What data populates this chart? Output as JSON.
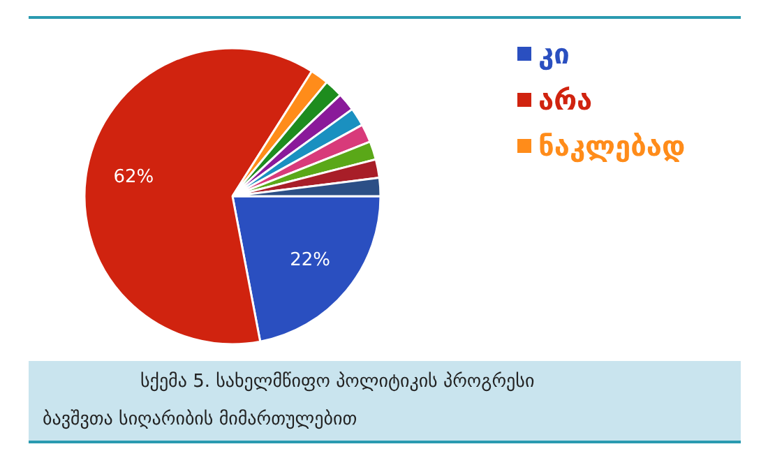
{
  "chart_data": {
    "type": "pie",
    "title": "სქემა 5.  სახელმწიფო პოლიტიკის პროგრესი",
    "subtitle": "ბავშვთა სიღარიბის მიმართულებით",
    "categories": [
      "კი",
      "არა",
      "ნაკლებად",
      null,
      null,
      null,
      null,
      null,
      null,
      null
    ],
    "values": [
      22,
      62,
      2,
      2,
      2,
      2,
      2,
      2,
      2,
      2
    ],
    "colors": [
      "#2a4fc0",
      "#d0230f",
      "#ff8c1a",
      "#1e8c1e",
      "#8a1a9a",
      "#1a90c0",
      "#d83a7a",
      "#5aa818",
      "#a81e28",
      "#2c4f86"
    ],
    "value_labels": [
      "22%",
      "62%",
      null,
      null,
      null,
      null,
      null,
      null,
      null,
      null
    ],
    "legend": "top right"
  }
}
